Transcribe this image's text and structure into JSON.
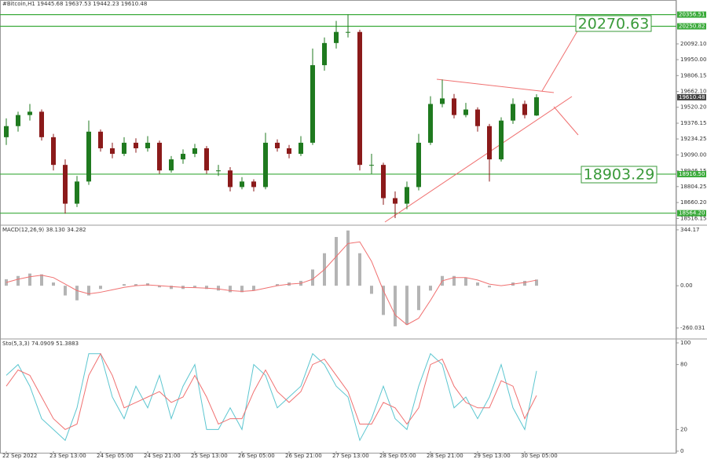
{
  "chart_data": [
    {
      "type": "candlestick",
      "title": "#Bitcoin,H1 19445.68 19637.53 19442.23 19610.48",
      "categories": [
        "22 Sep 2022",
        null,
        null,
        null,
        "23 Sep 13:00",
        null,
        null,
        null,
        "24 Sep 05:00",
        null,
        null,
        null,
        "24 Sep 21:00",
        null,
        null,
        null,
        "25 Sep 13:00",
        null,
        null,
        null,
        "26 Sep 05:00",
        null,
        null,
        null,
        "26 Sep 21:00",
        null,
        null,
        null,
        "27 Sep 13:00",
        null,
        null,
        null,
        "28 Sep 05:00",
        null,
        null,
        null,
        "28 Sep 21:00",
        null,
        null,
        null,
        "29 Sep 13:00",
        null,
        null,
        null,
        "30 Sep 05:00",
        null
      ],
      "open": [
        19250,
        19350,
        19450,
        19480,
        19250,
        19000,
        18650,
        18850,
        19300,
        19150,
        19100,
        19200,
        19150,
        19200,
        18950,
        19050,
        19100,
        19150,
        18950,
        18950,
        18800,
        18850,
        18800,
        19200,
        19150,
        19100,
        19200,
        19900,
        20100,
        20200,
        20200,
        19000,
        19000,
        18700,
        18650,
        18800,
        19200,
        19550,
        19600,
        19450,
        19500,
        19350,
        19050,
        19400,
        19550,
        19445.68
      ],
      "high": [
        19420,
        19480,
        19550,
        19500,
        19280,
        19050,
        18900,
        19400,
        19320,
        19200,
        19250,
        19240,
        19260,
        19220,
        19080,
        19140,
        19190,
        19170,
        19000,
        18980,
        18890,
        18870,
        19290,
        19230,
        19180,
        19260,
        20050,
        20150,
        20300,
        20356,
        20220,
        19100,
        19020,
        18760,
        18850,
        19280,
        19620,
        19770,
        19640,
        19560,
        19520,
        19370,
        19430,
        19600,
        19580,
        19637.53
      ],
      "low": [
        19180,
        19300,
        19400,
        19220,
        18950,
        18560,
        18620,
        18820,
        19120,
        19060,
        19080,
        19110,
        19120,
        18920,
        18930,
        19010,
        19070,
        18920,
        18900,
        18760,
        18780,
        18760,
        18780,
        19120,
        19060,
        19080,
        19180,
        19850,
        20050,
        20150,
        18950,
        18920,
        18640,
        18520,
        18600,
        18770,
        19180,
        19520,
        19420,
        19430,
        19300,
        18850,
        19030,
        19370,
        19420,
        19442.23
      ],
      "close": [
        19350,
        19450,
        19480,
        19250,
        19000,
        18650,
        18850,
        19300,
        19150,
        19100,
        19200,
        19150,
        19200,
        18950,
        19050,
        19100,
        19150,
        18950,
        18950,
        18800,
        18850,
        18800,
        19200,
        19150,
        19100,
        19200,
        19900,
        20100,
        20200,
        20200,
        19000,
        19000,
        18700,
        18650,
        18800,
        19200,
        19550,
        19600,
        19450,
        19500,
        19350,
        19050,
        19400,
        19550,
        19450,
        19610.48
      ],
      "up_color": "#1f7a1f",
      "down_color": "#8b1a1a",
      "ylim": [
        18470,
        20460
      ],
      "yticks": [
        {
          "value": 20092.1,
          "label": "20092.10"
        },
        {
          "value": 19950,
          "label": "19950.00"
        },
        19806.15,
        {
          "value": 19662.1,
          "label": "19662.10"
        },
        {
          "value": 19520.2,
          "label": "19520.20"
        },
        19376.15,
        19234.25,
        {
          "value": 19090,
          "label": "19090.00"
        },
        18946.15,
        18804.25,
        {
          "value": 18660.2,
          "label": "18660.20"
        },
        18516.15
      ],
      "levels": [
        20356.51,
        20250.82,
        {
          "value": 18916.5,
          "label": "18916.50"
        },
        {
          "value": 18564.2,
          "label": "18564.20"
        }
      ],
      "level_color": "#3aaa3a",
      "current_price": 19610.48,
      "annotations": [
        "20270.63",
        "18903.29"
      ]
    },
    {
      "type": "macd",
      "title": "MACD(12,26,9) 38.130 34.282",
      "series": [
        {
          "name": "MACD",
          "color": "#b4b4b4",
          "values": [
            40,
            60,
            75,
            70,
            20,
            -60,
            -90,
            -60,
            -20,
            0,
            10,
            10,
            15,
            -10,
            -20,
            -20,
            -10,
            -20,
            -30,
            -40,
            -40,
            -30,
            0,
            10,
            20,
            30,
            100,
            200,
            300,
            340,
            200,
            -50,
            -180,
            -250,
            -240,
            -150,
            -30,
            60,
            60,
            50,
            20,
            -10,
            0,
            20,
            30,
            38.13
          ]
        },
        {
          "name": "Signal",
          "color": "#f07070",
          "values": [
            20,
            40,
            55,
            65,
            50,
            10,
            -30,
            -50,
            -40,
            -25,
            -10,
            0,
            5,
            0,
            -5,
            -10,
            -12,
            -15,
            -20,
            -30,
            -35,
            -30,
            -15,
            0,
            10,
            15,
            40,
            100,
            180,
            260,
            270,
            150,
            -30,
            -180,
            -240,
            -200,
            -90,
            30,
            50,
            50,
            35,
            10,
            0,
            10,
            20,
            34.282
          ]
        }
      ],
      "ylim": [
        -318,
        363
      ],
      "yticks": [
        344.17,
        {
          "value": 0,
          "label": "0.00"
        },
        -260.031
      ]
    },
    {
      "type": "stochastic",
      "title": "Sto(5,3,3) 74.0909 51.3883",
      "series": [
        {
          "name": "%K",
          "color": "#5cc6d0",
          "values": [
            70,
            80,
            60,
            30,
            20,
            10,
            40,
            90,
            90,
            50,
            30,
            60,
            40,
            70,
            30,
            60,
            80,
            20,
            20,
            40,
            20,
            80,
            70,
            40,
            50,
            60,
            90,
            80,
            60,
            50,
            10,
            30,
            60,
            30,
            20,
            60,
            90,
            80,
            40,
            50,
            30,
            50,
            80,
            40,
            20,
            74.0909
          ]
        },
        {
          "name": "%D",
          "color": "#f07070",
          "values": [
            60,
            75,
            70,
            50,
            30,
            20,
            25,
            70,
            90,
            70,
            40,
            45,
            50,
            55,
            45,
            50,
            70,
            50,
            25,
            30,
            30,
            55,
            75,
            55,
            45,
            55,
            80,
            85,
            70,
            55,
            25,
            25,
            45,
            40,
            25,
            40,
            80,
            85,
            60,
            45,
            40,
            40,
            65,
            60,
            30,
            51.3883
          ]
        }
      ],
      "ylim": [
        0,
        100
      ],
      "yticks": [
        100,
        80,
        20,
        0
      ]
    }
  ]
}
